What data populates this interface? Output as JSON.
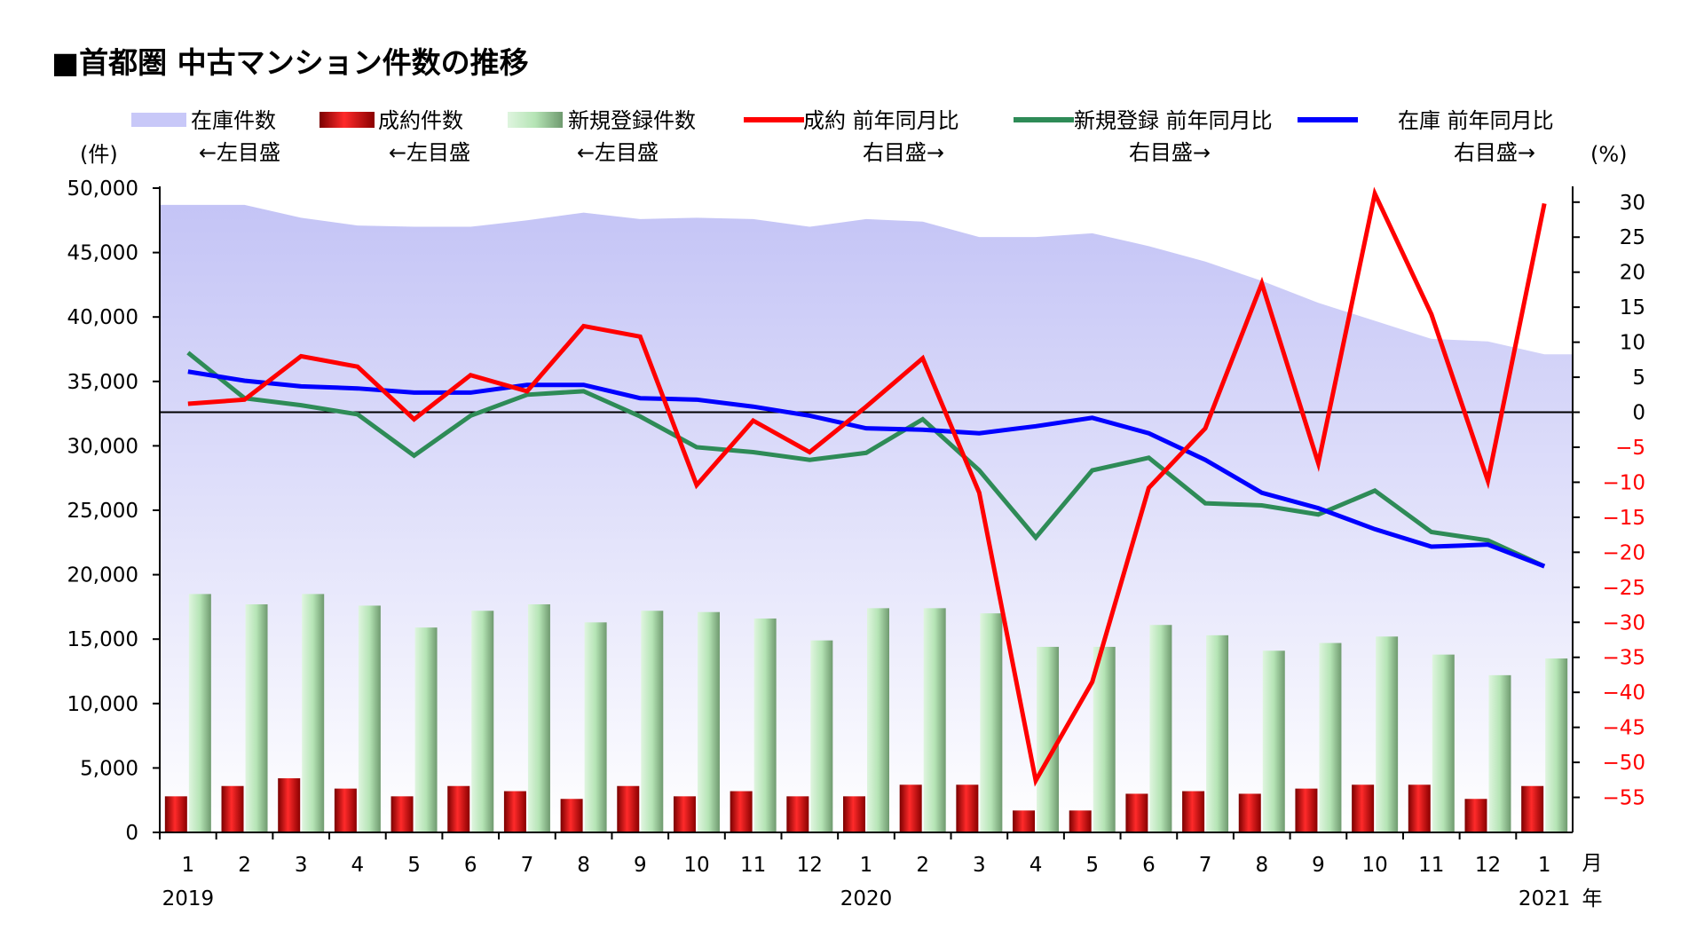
{
  "chart_data": {
    "type": "bar",
    "title": "■首都圏 中古マンション件数の推移",
    "left_axis": {
      "unit": "(件)",
      "ylim": [
        0,
        50000
      ],
      "ticks": [
        0,
        5000,
        10000,
        15000,
        20000,
        25000,
        30000,
        35000,
        40000,
        45000,
        50000
      ],
      "tick_labels": [
        "0",
        "5,000",
        "10,000",
        "15,000",
        "20,000",
        "25,000",
        "30,000",
        "35,000",
        "40,000",
        "45,000",
        "50,000"
      ]
    },
    "right_axis": {
      "unit": "(%)",
      "ylim": [
        -60,
        32
      ],
      "ticks": [
        30,
        25,
        20,
        15,
        10,
        5,
        0,
        -5,
        -10,
        -15,
        -20,
        -25,
        -30,
        -35,
        -40,
        -45,
        -50,
        -55
      ],
      "tick_labels": [
        "30",
        "25",
        "20",
        "15",
        "10",
        "5",
        "0",
        "−5",
        "−10",
        "−15",
        "−20",
        "−25",
        "−30",
        "−35",
        "−40",
        "−45",
        "−50",
        "−55"
      ]
    },
    "x_month_labels": [
      "1",
      "2",
      "3",
      "4",
      "5",
      "6",
      "7",
      "8",
      "9",
      "10",
      "11",
      "12",
      "1",
      "2",
      "3",
      "4",
      "5",
      "6",
      "7",
      "8",
      "9",
      "10",
      "11",
      "12",
      "1"
    ],
    "year_labels": [
      {
        "label": "2019",
        "index": 0
      },
      {
        "label": "2020",
        "index": 12
      },
      {
        "label": "2021",
        "index": 24
      }
    ],
    "x_unit_month": "月",
    "x_unit_year": "年",
    "legend": [
      {
        "name": "在庫件数",
        "sub": "←左目盛",
        "kind": "area",
        "color": "#c8c8f8"
      },
      {
        "name": "成約件数",
        "sub": "←左目盛",
        "kind": "bar",
        "color": "#e00000"
      },
      {
        "name": "新規登録件数",
        "sub": "←左目盛",
        "kind": "bar",
        "color": "#a8dca8"
      },
      {
        "name": "成約 前年同月比",
        "sub": "右目盛→",
        "kind": "line",
        "color": "#ff0000"
      },
      {
        "name": "新規登録 前年同月比",
        "sub": "右目盛→",
        "kind": "line",
        "color": "#2e8b57"
      },
      {
        "name": "在庫 前年同月比",
        "sub": "右目盛→",
        "kind": "line",
        "color": "#0000ff"
      }
    ],
    "series": [
      {
        "key": "inventory",
        "axis": "left",
        "kind": "area",
        "color": "#c8c8f8",
        "values": [
          48700,
          48700,
          47700,
          47100,
          47000,
          47000,
          47500,
          48100,
          47600,
          47700,
          47600,
          47000,
          47600,
          47400,
          46200,
          46200,
          46500,
          45500,
          44300,
          42800,
          41100,
          39700,
          38300,
          38100,
          37100
        ]
      },
      {
        "key": "contracts",
        "axis": "left",
        "kind": "bar",
        "color": "#e00000",
        "values": [
          2800,
          3600,
          4200,
          3400,
          2800,
          3600,
          3200,
          2600,
          3600,
          2800,
          3200,
          2800,
          2800,
          3700,
          3700,
          1700,
          1700,
          3000,
          3200,
          3000,
          3400,
          3700,
          3700,
          2600,
          3600
        ]
      },
      {
        "key": "new_listings",
        "axis": "left",
        "kind": "bar",
        "color": "#a8dca8",
        "values": [
          18500,
          17700,
          18500,
          17600,
          15900,
          17200,
          17700,
          16300,
          17200,
          17100,
          16600,
          14900,
          17400,
          17400,
          17000,
          14400,
          14400,
          16100,
          15300,
          14100,
          14700,
          15200,
          13800,
          12200,
          13500
        ]
      },
      {
        "key": "contracts_yoy",
        "axis": "right",
        "kind": "line",
        "color": "#ff0000",
        "values": [
          1.2,
          1.8,
          8.0,
          6.5,
          -1.0,
          5.3,
          3.0,
          12.3,
          10.8,
          -10.4,
          -1.2,
          -5.7,
          0.8,
          7.7,
          -11.5,
          -52.6,
          -38.5,
          -10.8,
          -2.3,
          18.4,
          -7.3,
          31.2,
          14.0,
          -9.8,
          29.8
        ]
      },
      {
        "key": "new_listings_yoy",
        "axis": "right",
        "kind": "line",
        "color": "#2e8b57",
        "values": [
          8.5,
          2.0,
          1.0,
          -0.3,
          -6.2,
          -0.5,
          2.5,
          3.0,
          -0.6,
          -5.0,
          -5.7,
          -6.8,
          -5.8,
          -1.0,
          -8.3,
          -17.9,
          -8.3,
          -6.5,
          -13.0,
          -13.3,
          -14.6,
          -11.2,
          -17.1,
          -18.3,
          -22.0
        ]
      },
      {
        "key": "inventory_yoy",
        "axis": "right",
        "kind": "line",
        "color": "#0000ff",
        "values": [
          5.8,
          4.5,
          3.7,
          3.4,
          2.8,
          2.8,
          3.9,
          3.9,
          2.0,
          1.8,
          0.8,
          -0.5,
          -2.3,
          -2.5,
          -3.0,
          -2.0,
          -0.8,
          -3.0,
          -6.8,
          -11.5,
          -13.7,
          -16.7,
          -19.2,
          -18.9,
          -22.0
        ]
      }
    ]
  }
}
